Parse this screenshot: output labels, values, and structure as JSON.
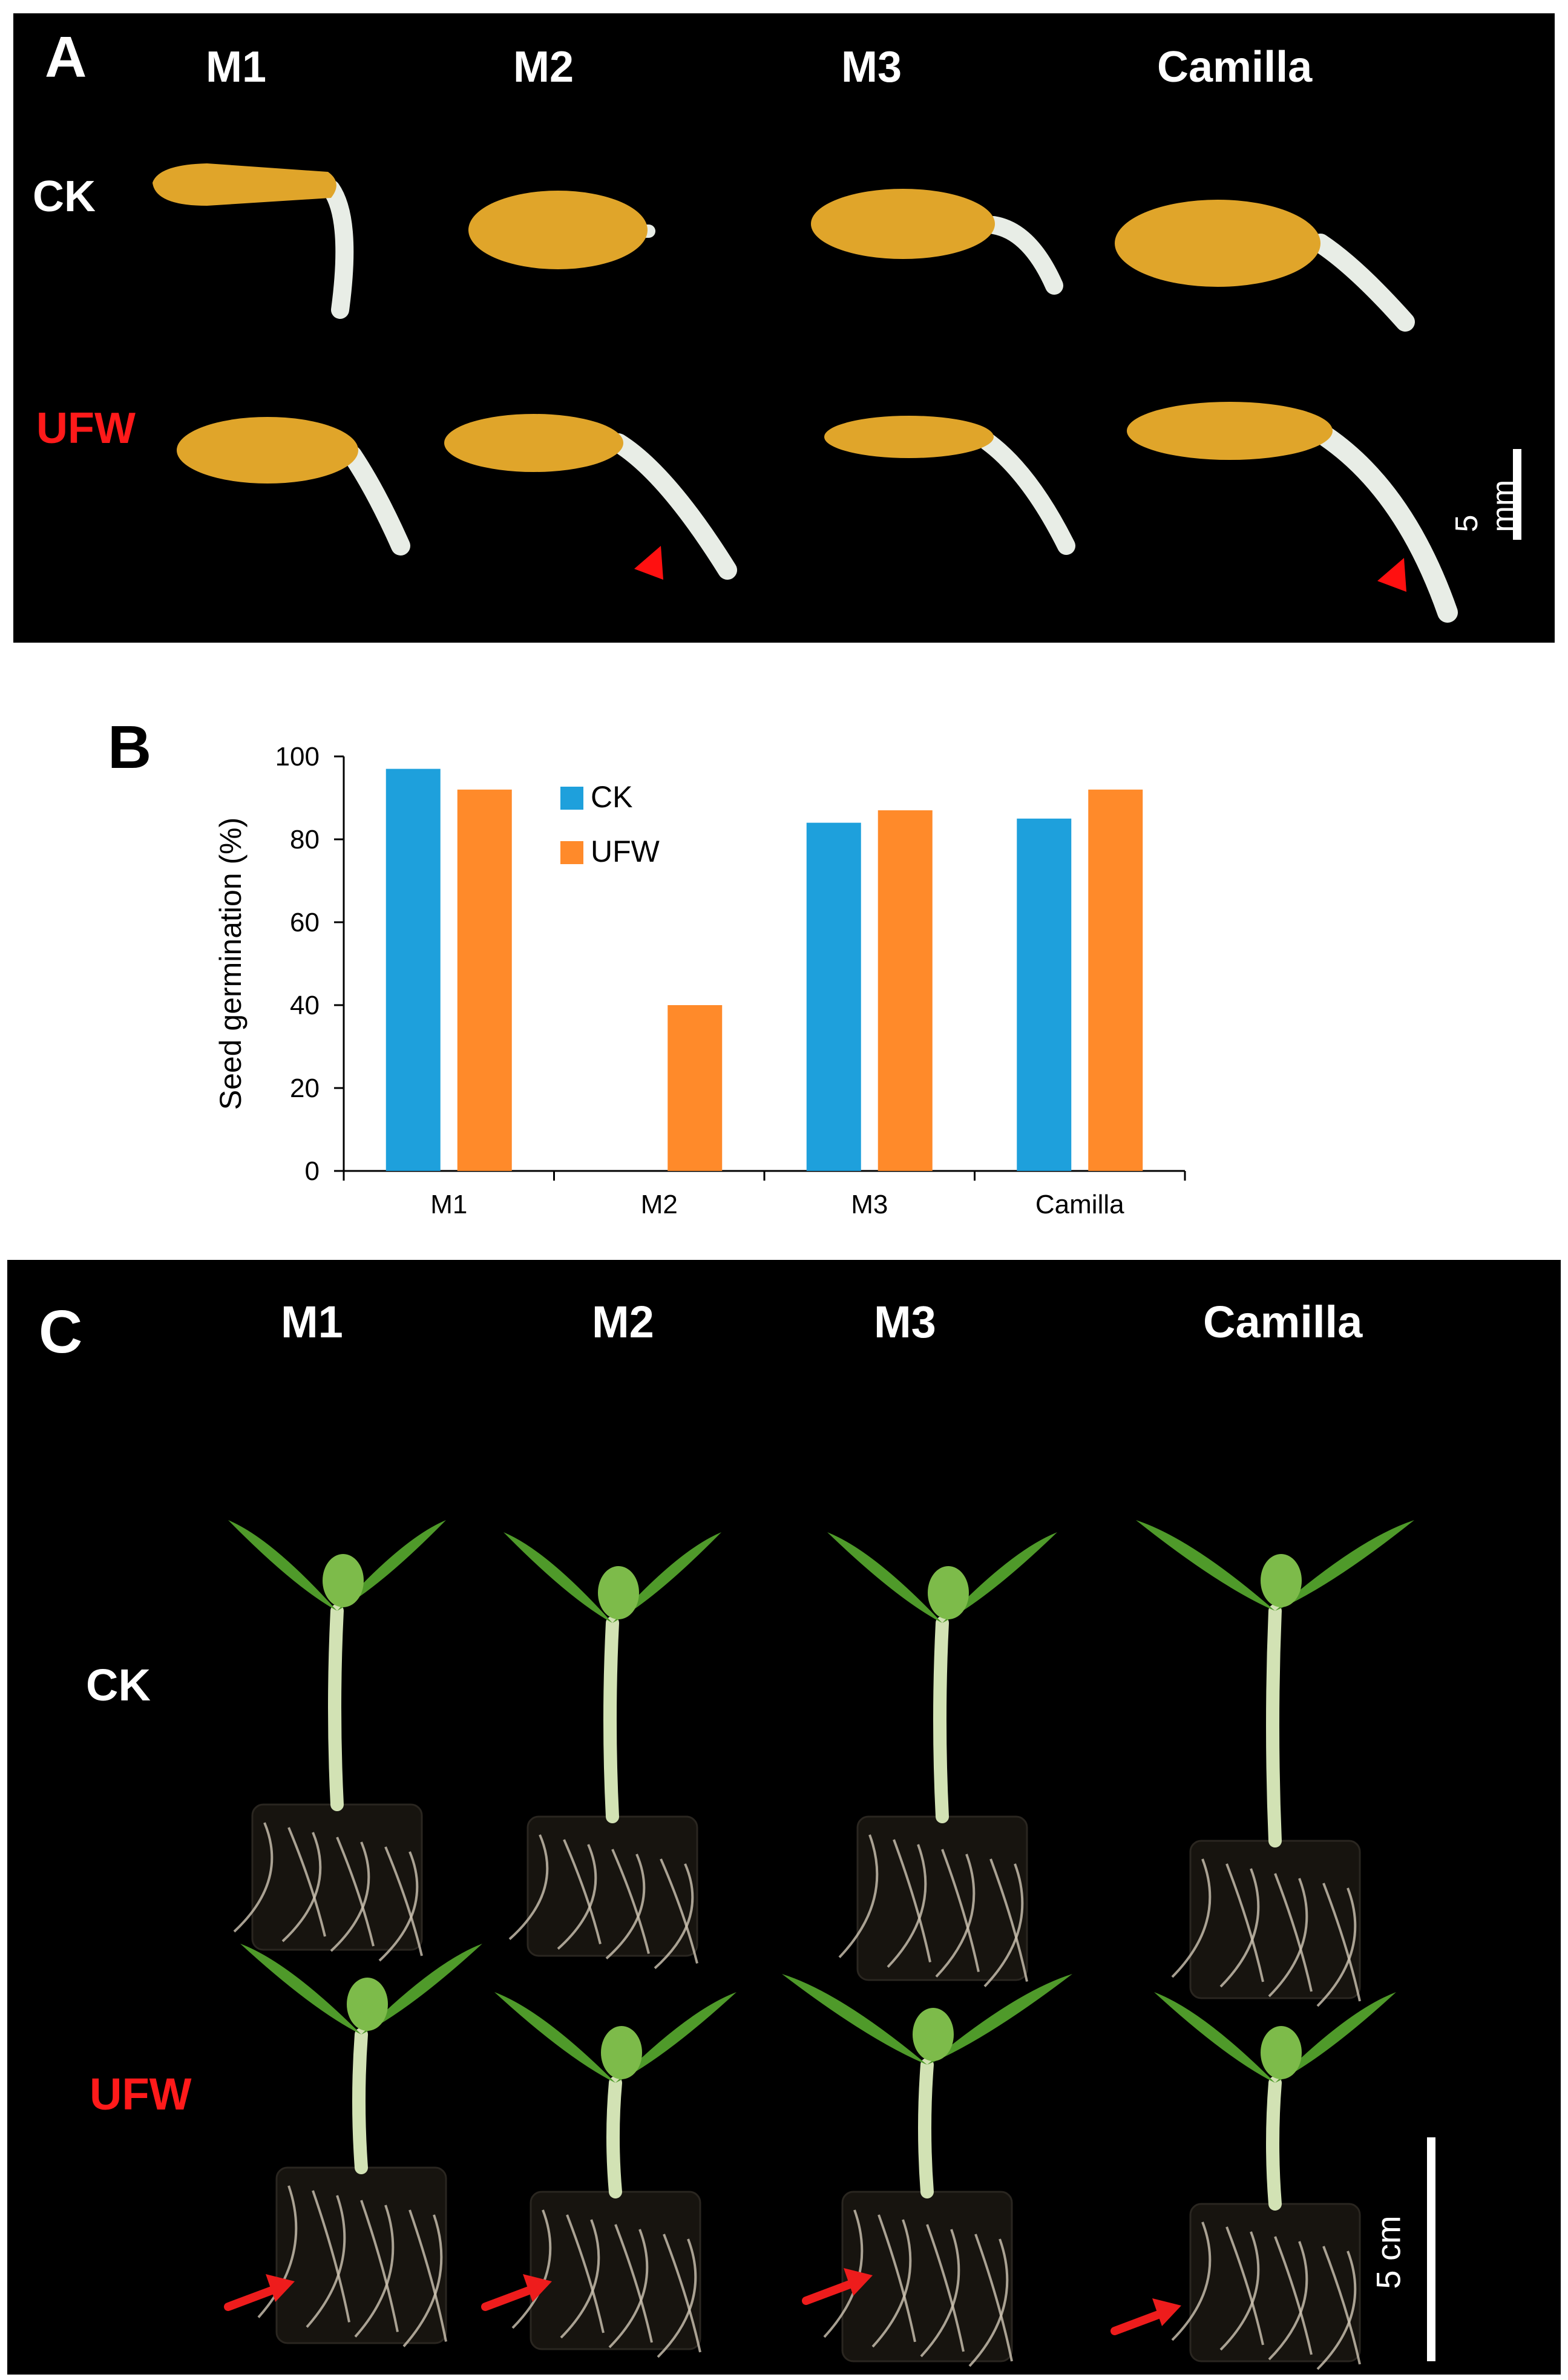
{
  "panel_a": {
    "letter": "A",
    "columns": [
      "M1",
      "M2",
      "M3",
      "Camilla"
    ],
    "rows": [
      "CK",
      "UFW"
    ],
    "scale_label": "5 mm",
    "colors": {
      "seed": "#e0a52a",
      "radicle": "#e8ede6",
      "marker": "#ff1010"
    }
  },
  "panel_b": {
    "letter": "B"
  },
  "chart_data": {
    "type": "bar",
    "categories": [
      "M1",
      "M2",
      "M3",
      "Camilla"
    ],
    "series": [
      {
        "name": "CK",
        "values": [
          97,
          0,
          84,
          85
        ],
        "color": "#1ea0dc"
      },
      {
        "name": "UFW",
        "values": [
          92,
          40,
          87,
          92
        ],
        "color": "#ff8a2a"
      }
    ],
    "title": "",
    "xlabel": "",
    "ylabel": "Seed germination (%)",
    "ylim": [
      0,
      100
    ],
    "yticks": [
      0,
      20,
      40,
      60,
      80,
      100
    ],
    "grid": false,
    "legend": "top-center"
  },
  "panel_c": {
    "letter": "C",
    "columns": [
      "M1",
      "M2",
      "M3",
      "Camilla"
    ],
    "rows": [
      "CK",
      "UFW"
    ],
    "scale_label": "5 cm",
    "colors": {
      "leaf": "#4f9a2a",
      "stem": "#d2e2b4",
      "soil": "#17140f",
      "root": "#cfc6b4",
      "marker": "#ee1c1c"
    }
  }
}
